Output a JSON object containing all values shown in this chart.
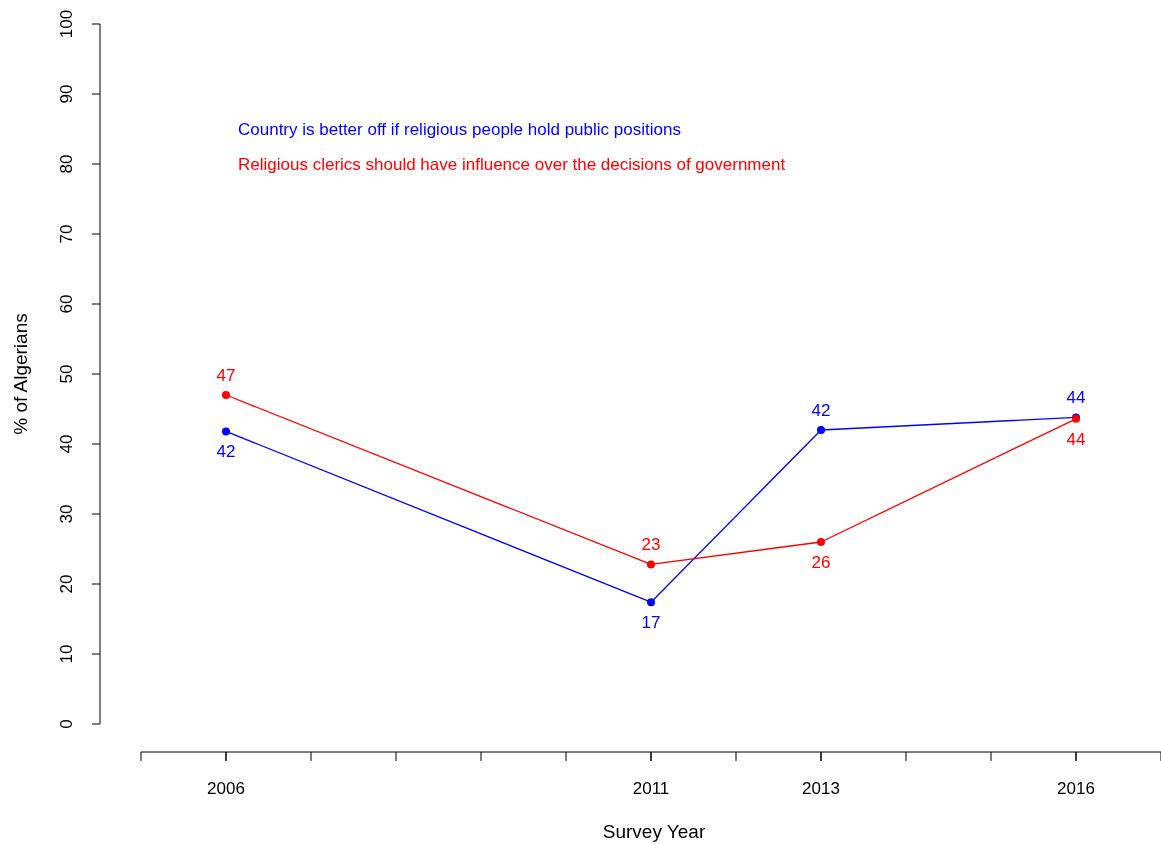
{
  "chart_data": {
    "type": "line",
    "xlabel": "Survey Year",
    "ylabel": "% of Algerians",
    "x": [
      2006,
      2011,
      2013,
      2016
    ],
    "series": [
      {
        "name": "Country is better off if religious people hold public positions",
        "color": "#0000ff",
        "values": [
          41.8,
          17.4,
          42,
          43.8
        ],
        "value_labels": [
          "42",
          "17",
          "42",
          "44"
        ]
      },
      {
        "name": "Religious clerics should have influence over the decisions of government",
        "color": "#ff0000",
        "values": [
          47.0,
          22.8,
          26,
          43.6
        ],
        "value_labels": [
          "47",
          "23",
          "26",
          "44"
        ]
      }
    ],
    "xlim": [
      2005,
      2017
    ],
    "xticks": [
      2006,
      2011,
      2013,
      2016
    ],
    "ylim": [
      0,
      100
    ],
    "yticks": [
      0,
      10,
      20,
      30,
      40,
      50,
      60,
      70,
      80,
      90,
      100
    ],
    "legend": "top left",
    "marker": "circle",
    "line_style": "solid",
    "grid": false
  }
}
